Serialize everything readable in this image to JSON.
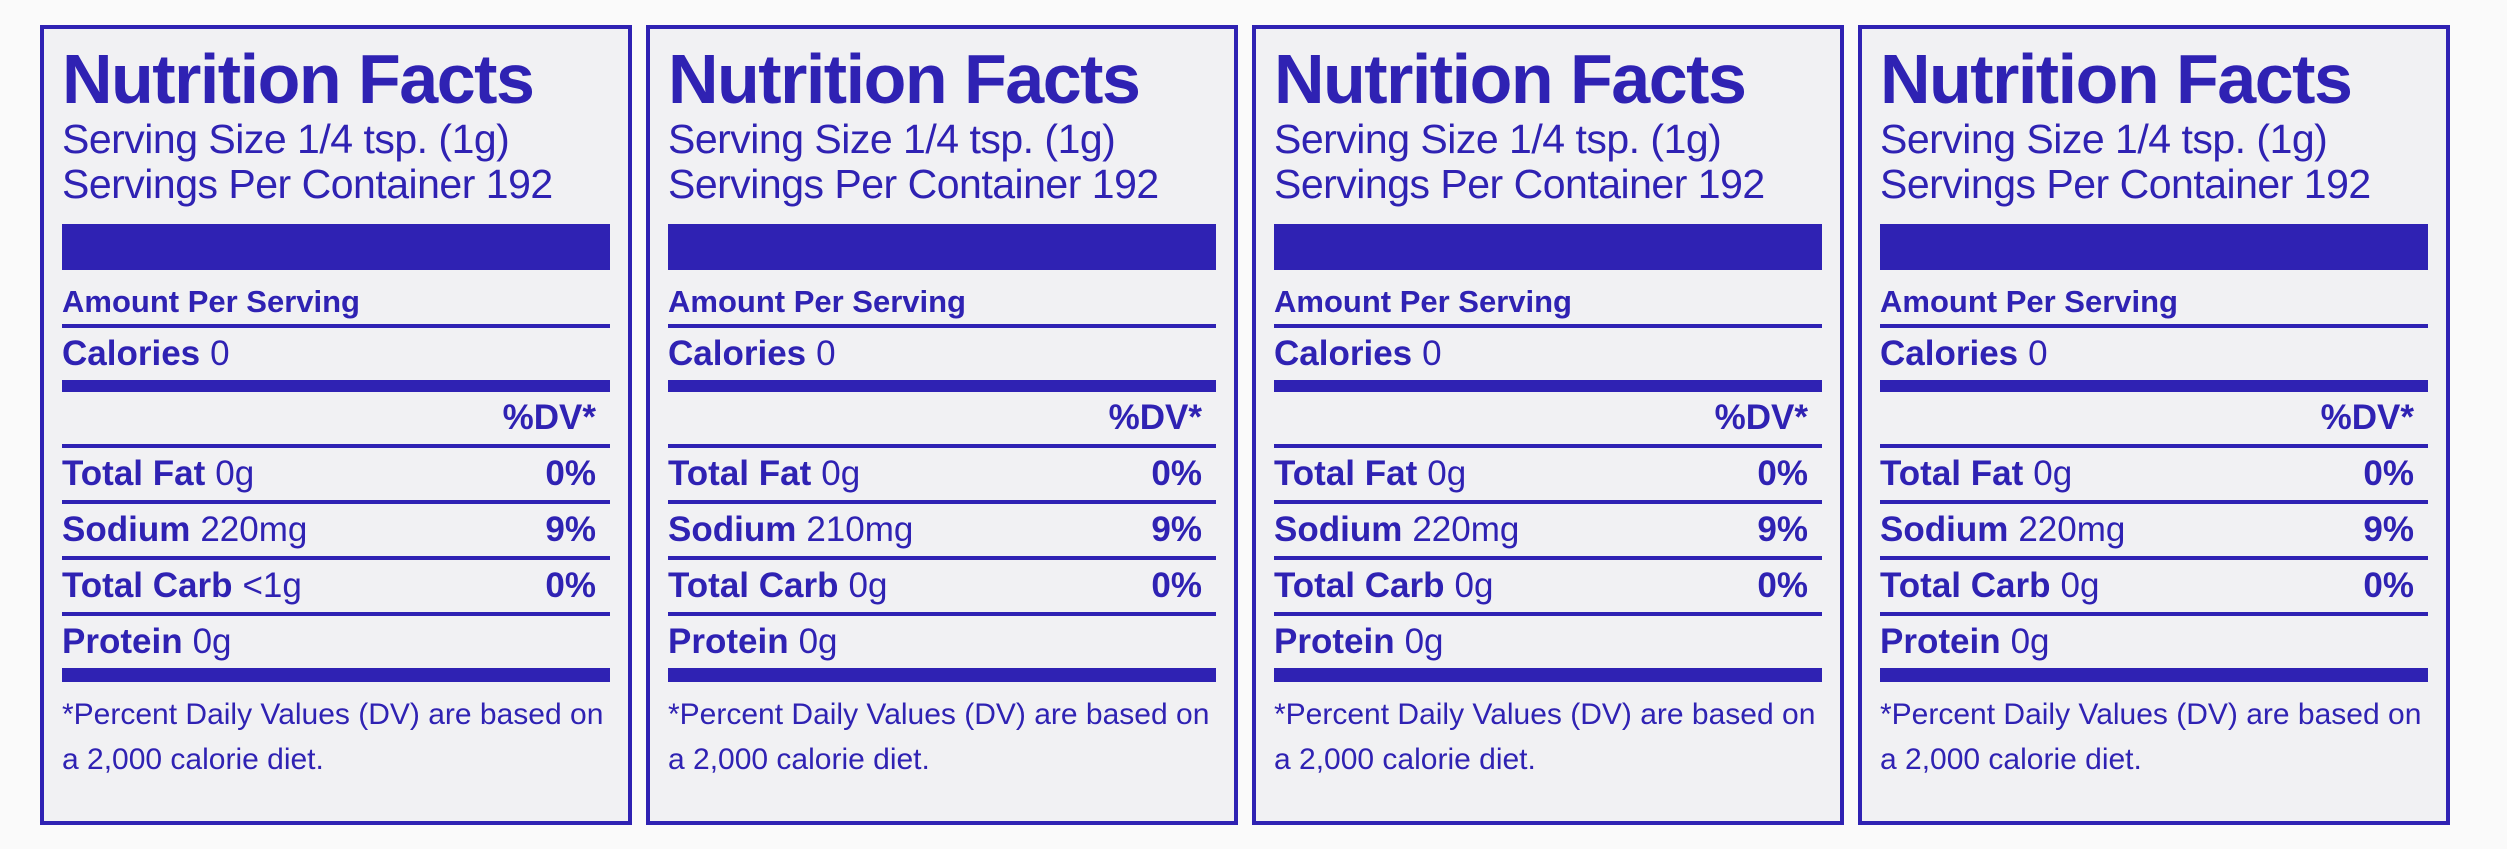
{
  "labels": [
    {
      "title": "Nutrition Facts",
      "serving_size": "Serving Size 1/4 tsp. (1g)",
      "servings_per_container": "Servings Per Container 192",
      "amount_per_serving": "Amount Per Serving",
      "calories": {
        "name": "Calories",
        "amount": "0"
      },
      "dv_header": "%DV*",
      "nutrients": [
        {
          "name": "Total Fat",
          "amount": "0g",
          "dv": "0%"
        },
        {
          "name": "Sodium",
          "amount": "220mg",
          "dv": "9%"
        },
        {
          "name": "Total Carb",
          "amount": "<1g",
          "dv": "0%"
        },
        {
          "name": "Protein",
          "amount": "0g",
          "dv": null
        }
      ],
      "footnote": "*Percent Daily Values (DV) are based on a 2,000 calorie diet."
    },
    {
      "title": "Nutrition Facts",
      "serving_size": "Serving Size 1/4 tsp. (1g)",
      "servings_per_container": "Servings Per Container 192",
      "amount_per_serving": "Amount Per Serving",
      "calories": {
        "name": "Calories",
        "amount": "0"
      },
      "dv_header": "%DV*",
      "nutrients": [
        {
          "name": "Total Fat",
          "amount": "0g",
          "dv": "0%"
        },
        {
          "name": "Sodium",
          "amount": "210mg",
          "dv": "9%"
        },
        {
          "name": "Total Carb",
          "amount": "0g",
          "dv": "0%"
        },
        {
          "name": "Protein",
          "amount": "0g",
          "dv": null
        }
      ],
      "footnote": "*Percent Daily Values (DV) are based on a 2,000 calorie diet."
    },
    {
      "title": "Nutrition Facts",
      "serving_size": "Serving Size 1/4 tsp. (1g)",
      "servings_per_container": "Servings Per Container 192",
      "amount_per_serving": "Amount Per Serving",
      "calories": {
        "name": "Calories",
        "amount": "0"
      },
      "dv_header": "%DV*",
      "nutrients": [
        {
          "name": "Total Fat",
          "amount": "0g",
          "dv": "0%"
        },
        {
          "name": "Sodium",
          "amount": "220mg",
          "dv": "9%"
        },
        {
          "name": "Total Carb",
          "amount": "0g",
          "dv": "0%"
        },
        {
          "name": "Protein",
          "amount": "0g",
          "dv": null
        }
      ],
      "footnote": "*Percent Daily Values (DV) are based on a 2,000 calorie diet."
    },
    {
      "title": "Nutrition Facts",
      "serving_size": "Serving Size 1/4 tsp. (1g)",
      "servings_per_container": "Servings Per Container 192",
      "amount_per_serving": "Amount Per Serving",
      "calories": {
        "name": "Calories",
        "amount": "0"
      },
      "dv_header": "%DV*",
      "nutrients": [
        {
          "name": "Total Fat",
          "amount": "0g",
          "dv": "0%"
        },
        {
          "name": "Sodium",
          "amount": "220mg",
          "dv": "9%"
        },
        {
          "name": "Total Carb",
          "amount": "0g",
          "dv": "0%"
        },
        {
          "name": "Protein",
          "amount": "0g",
          "dv": null
        }
      ],
      "footnote": "*Percent Daily Values (DV) are based on a 2,000 calorie diet."
    }
  ]
}
